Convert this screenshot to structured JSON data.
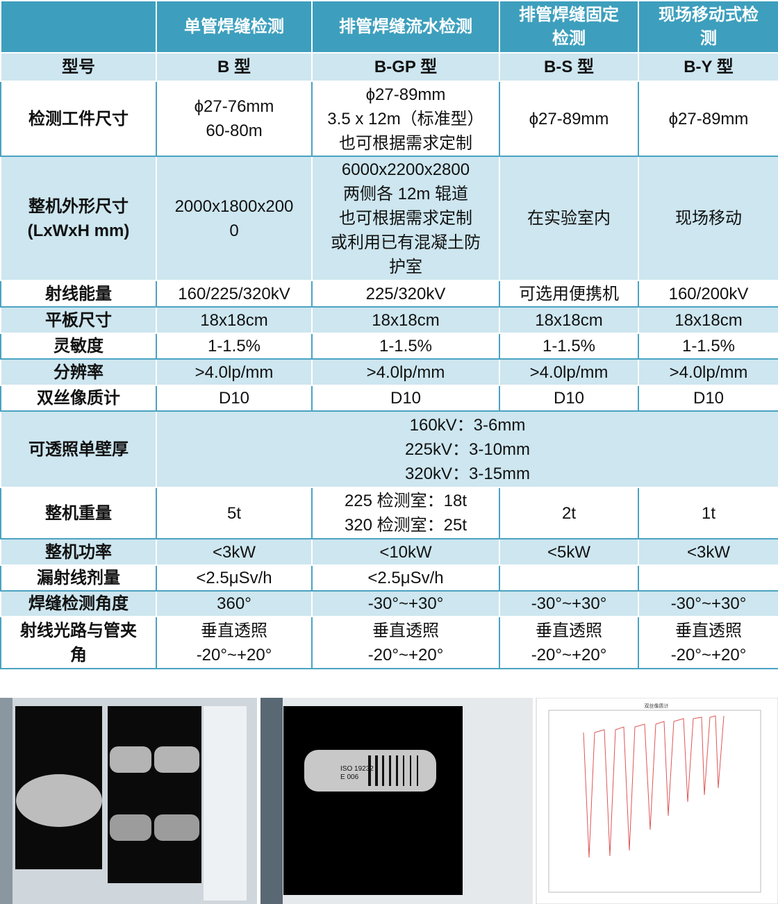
{
  "header": {
    "columns": [
      "单管焊缝检测",
      "排管焊缝流水检测",
      [
        "排管焊缝固定",
        "检测"
      ],
      [
        "现场移动式检",
        "测"
      ]
    ]
  },
  "rows": [
    {
      "label": [
        "型号"
      ],
      "bold": true,
      "cells": [
        [
          "B 型"
        ],
        [
          "B-GP 型"
        ],
        [
          "B-S 型"
        ],
        [
          "B-Y 型"
        ]
      ]
    },
    {
      "label": [
        "检测工件尺寸"
      ],
      "cells": [
        [
          "ϕ27-76mm",
          "60-80m"
        ],
        [
          "ϕ27-89mm",
          "3.5 x 12m（标准型）",
          "也可根据需求定制"
        ],
        [
          "ϕ27-89mm"
        ],
        [
          "ϕ27-89mm"
        ]
      ]
    },
    {
      "label": [
        "整机外形尺寸",
        "(LxWxH mm)"
      ],
      "cells": [
        [
          "2000x1800x200",
          "0"
        ],
        [
          "6000x2200x2800",
          "两侧各 12m 辊道",
          "也可根据需求定制",
          "或利用已有混凝土防",
          "护室"
        ],
        [
          "在实验室内"
        ],
        [
          "现场移动"
        ]
      ]
    },
    {
      "label": [
        "射线能量"
      ],
      "cells": [
        [
          "160/225/320kV"
        ],
        [
          "225/320kV"
        ],
        [
          "可选用便携机"
        ],
        [
          "160/200kV"
        ]
      ]
    },
    {
      "label": [
        "平板尺寸"
      ],
      "cells": [
        [
          "18x18cm"
        ],
        [
          "18x18cm"
        ],
        [
          "18x18cm"
        ],
        [
          "18x18cm"
        ]
      ]
    },
    {
      "label": [
        "灵敏度"
      ],
      "cells": [
        [
          "1-1.5%"
        ],
        [
          "1-1.5%"
        ],
        [
          "1-1.5%"
        ],
        [
          "1-1.5%"
        ]
      ]
    },
    {
      "label": [
        "分辨率"
      ],
      "cells": [
        [
          ">4.0lp/mm"
        ],
        [
          ">4.0lp/mm"
        ],
        [
          ">4.0lp/mm"
        ],
        [
          ">4.0lp/mm"
        ]
      ]
    },
    {
      "label": [
        "双丝像质计"
      ],
      "cells": [
        [
          "D10"
        ],
        [
          "D10"
        ],
        [
          "D10"
        ],
        [
          "D10"
        ]
      ]
    },
    {
      "label": [
        "可透照单壁厚"
      ],
      "cells": [
        [
          "160kV：3-6mm",
          "225kV：3-10mm",
          "320kV：3-15mm"
        ]
      ]
    },
    {
      "label": [
        "整机重量"
      ],
      "cells": [
        [
          "5t"
        ],
        [
          "225 检测室：18t",
          "320 检测室：25t"
        ],
        [
          "2t"
        ],
        [
          "1t"
        ]
      ]
    },
    {
      "label": [
        "整机功率"
      ],
      "cells": [
        [
          "<3kW"
        ],
        [
          "<10kW"
        ],
        [
          "<5kW"
        ],
        [
          "<3kW"
        ]
      ]
    },
    {
      "label": [
        "漏射线剂量"
      ],
      "cells": [
        [
          "<2.5μSv/h"
        ],
        [
          "<2.5μSv/h"
        ]
      ]
    },
    {
      "label": [
        "焊缝检测角度"
      ],
      "cells": [
        [
          "360°"
        ],
        [
          "-30°~+30°"
        ],
        [
          "-30°~+30°"
        ],
        [
          "-30°~+30°"
        ]
      ]
    },
    {
      "label": [
        "射线光路与管夹",
        "角"
      ],
      "cells": [
        [
          "垂直透照",
          "-20°~+20°"
        ],
        [
          "垂直透照",
          "-20°~+20°"
        ],
        [
          "垂直透照",
          "-20°~+20°"
        ],
        [
          "垂直透照",
          "-20°~+20°"
        ]
      ]
    }
  ],
  "images": {
    "marker": [
      "ISO 19232",
      "E 006"
    ],
    "chart_title": "双丝像质计"
  }
}
